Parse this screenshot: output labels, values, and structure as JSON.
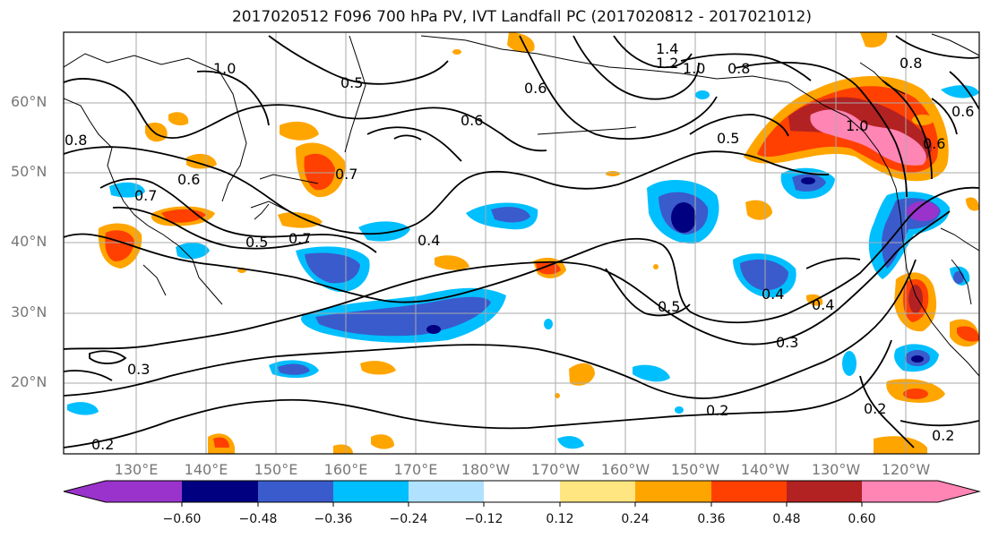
{
  "title": "2017020512 F096 700 hPa PV, IVT Landfall PC (2017020812 - 2017021012)",
  "lat_labels": [
    "60°N",
    "50°N",
    "40°N",
    "30°N",
    "20°N"
  ],
  "lon_labels": [
    "130°E",
    "140°E",
    "150°E",
    "160°E",
    "170°E",
    "180°W",
    "170°W",
    "160°W",
    "150°W",
    "140°W",
    "130°W",
    "120°W"
  ],
  "contour_labels": [
    "1.4",
    "1.2",
    "1.0",
    "0.8",
    "0.5",
    "0.6",
    "1.0",
    "0.5",
    "0.6",
    "0.7",
    "0.6",
    "0.7",
    "0.8",
    "0.5",
    "0.7",
    "0.4",
    "0.5",
    "0.4",
    "0.4",
    "0.3",
    "0.3",
    "0.2",
    "0.2",
    "0.2",
    "0.2",
    "1.0",
    "0.8",
    "0.6",
    "0.6"
  ],
  "colorbar": {
    "colors": [
      "#9933cc",
      "#000080",
      "#3a5bcc",
      "#00bfff",
      "#b0e2ff",
      "#ffffff",
      "#ffe680",
      "#ffa500",
      "#ff4000",
      "#b22222",
      "#ff85b4"
    ],
    "tick_labels": [
      "−0.60",
      "−0.48",
      "−0.36",
      "−0.24",
      "−0.12",
      "0.12",
      "0.24",
      "0.36",
      "0.48",
      "0.60"
    ]
  }
}
